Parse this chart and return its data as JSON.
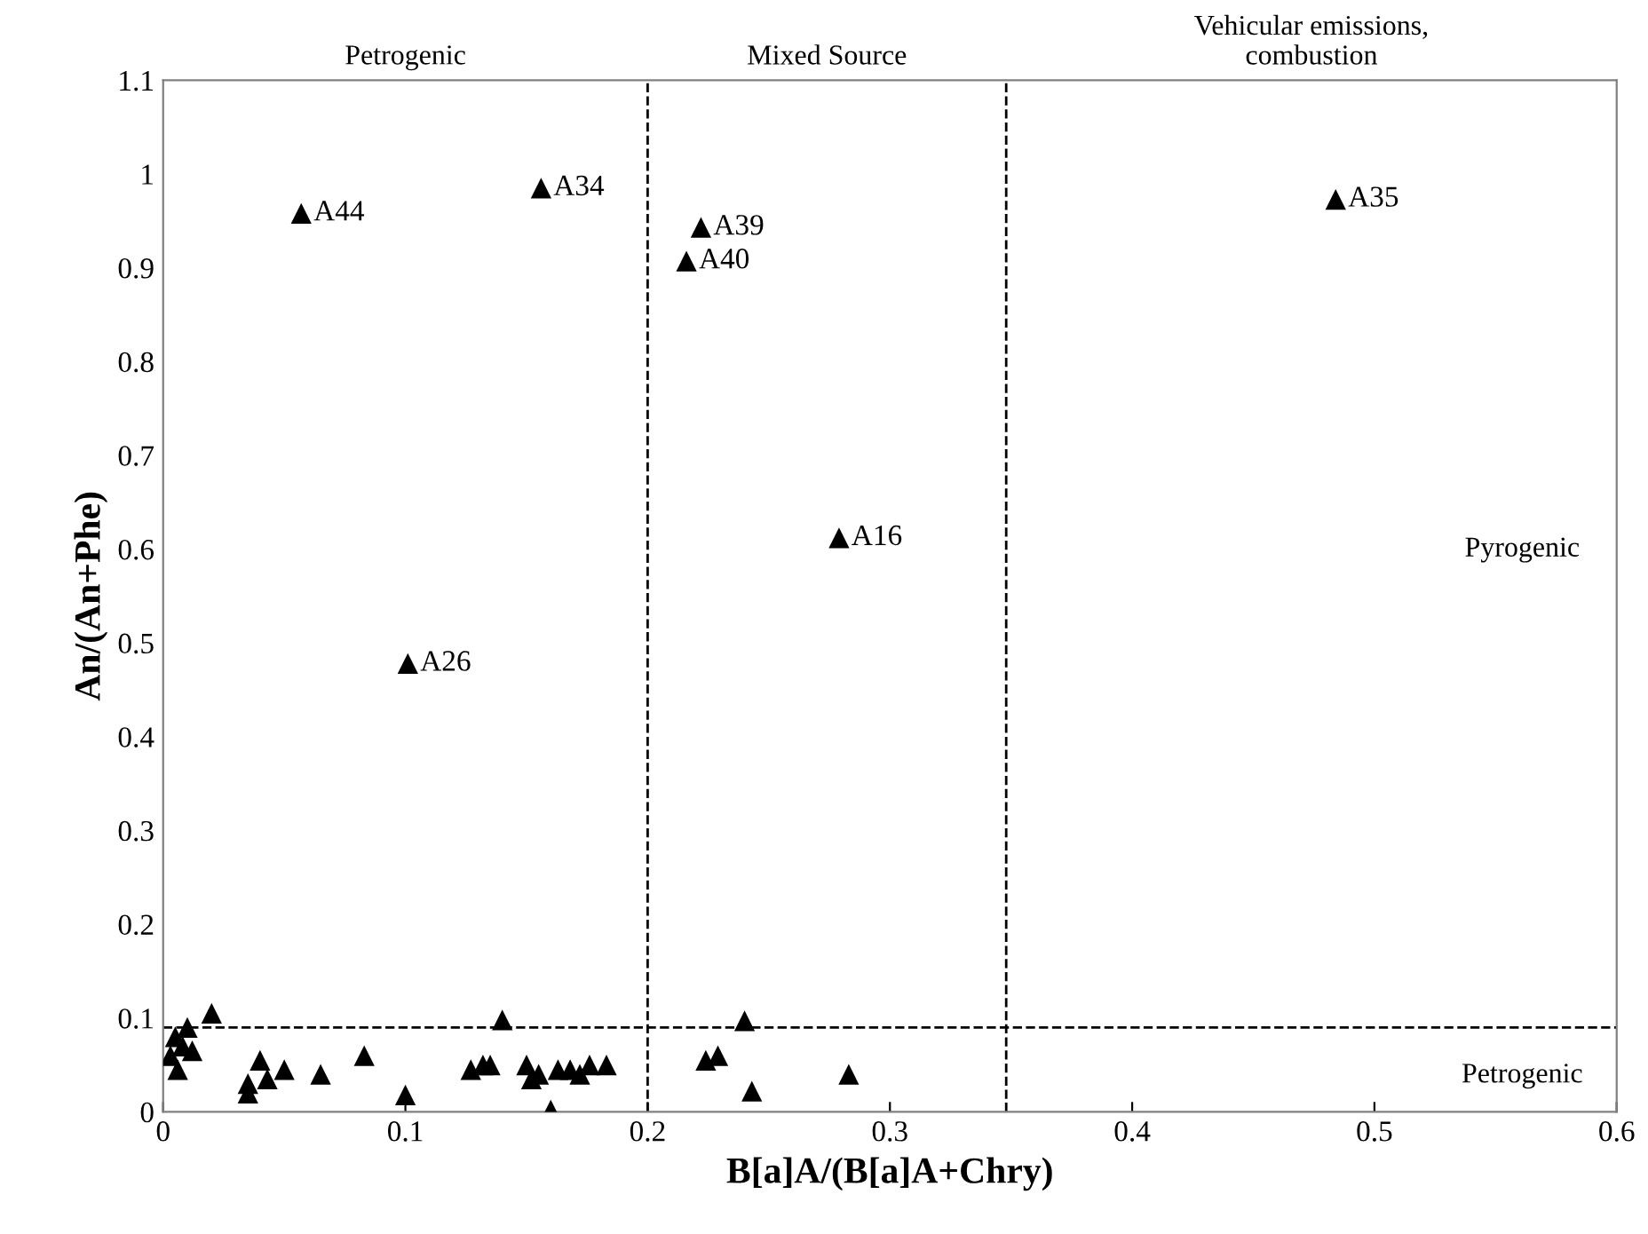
{
  "chart_data": {
    "type": "scatter",
    "xlabel": "B[a]A/(B[a]A+Chry)",
    "ylabel": "An/(An+Phe)",
    "x": [
      0.003,
      0.005,
      0.007,
      0.008,
      0.01,
      0.012,
      0.006,
      0.02,
      0.035,
      0.035,
      0.04,
      0.043,
      0.05,
      0.065,
      0.083,
      0.1,
      0.127,
      0.132,
      0.135,
      0.14,
      0.15,
      0.152,
      0.155,
      0.16,
      0.163,
      0.168,
      0.172,
      0.176,
      0.183,
      0.224,
      0.229,
      0.24,
      0.243,
      0.283,
      0.057,
      0.156,
      0.222,
      0.216,
      0.279,
      0.101,
      0.484
    ],
    "series": [
      {
        "color": "#000000",
        "values": [
          0.06,
          0.08,
          null,
          0.07,
          0.09,
          0.065,
          0.045,
          0.105,
          0.03,
          0.02,
          0.055,
          0.035,
          0.045,
          0.04,
          0.06,
          0.018,
          0.045,
          0.05,
          0.05,
          0.098,
          0.05,
          0.035,
          0.04,
          0.002,
          0.045,
          0.045,
          0.04,
          0.05,
          0.05,
          0.055,
          0.06,
          0.097,
          0.022,
          0.04,
          0.958,
          0.985,
          0.943,
          0.907,
          0.612,
          0.478,
          0.973
        ]
      }
    ],
    "marker": "triangle",
    "xlim": [
      0,
      0.6
    ],
    "xticks": [
      0,
      0.1,
      0.2,
      0.3,
      0.4,
      0.5,
      0.6
    ],
    "ylim": [
      0,
      1.1
    ],
    "yticks": [
      0,
      0.1,
      0.2,
      0.3,
      0.4,
      0.5,
      0.6,
      0.7,
      0.8,
      0.9,
      1,
      1.1
    ],
    "grid": false,
    "legend": false,
    "ref_lines": [
      {
        "axis": "x",
        "value": 0.2,
        "color": "#000000",
        "line_style": "dashed"
      },
      {
        "axis": "x",
        "value": 0.348,
        "color": "#000000",
        "line_style": "dashed"
      },
      {
        "axis": "y",
        "value": 0.09,
        "color": "#000000",
        "line_style": "dashed"
      }
    ],
    "annotations": [
      "Petrogenic",
      "Mixed Source",
      "Vehicular emissions,\ncombustion",
      "Pyrogenic",
      "Petrogenic",
      {
        "text": "A44",
        "x": 0.057,
        "y": 0.958
      },
      {
        "text": "A34",
        "x": 0.156,
        "y": 0.985
      },
      {
        "text": "A39",
        "x": 0.222,
        "y": 0.943
      },
      {
        "text": "A40",
        "x": 0.216,
        "y": 0.907
      },
      {
        "text": "A16",
        "x": 0.279,
        "y": 0.612
      },
      {
        "text": "A26",
        "x": 0.101,
        "y": 0.478
      },
      {
        "text": "A35",
        "x": 0.484,
        "y": 0.973
      }
    ]
  }
}
